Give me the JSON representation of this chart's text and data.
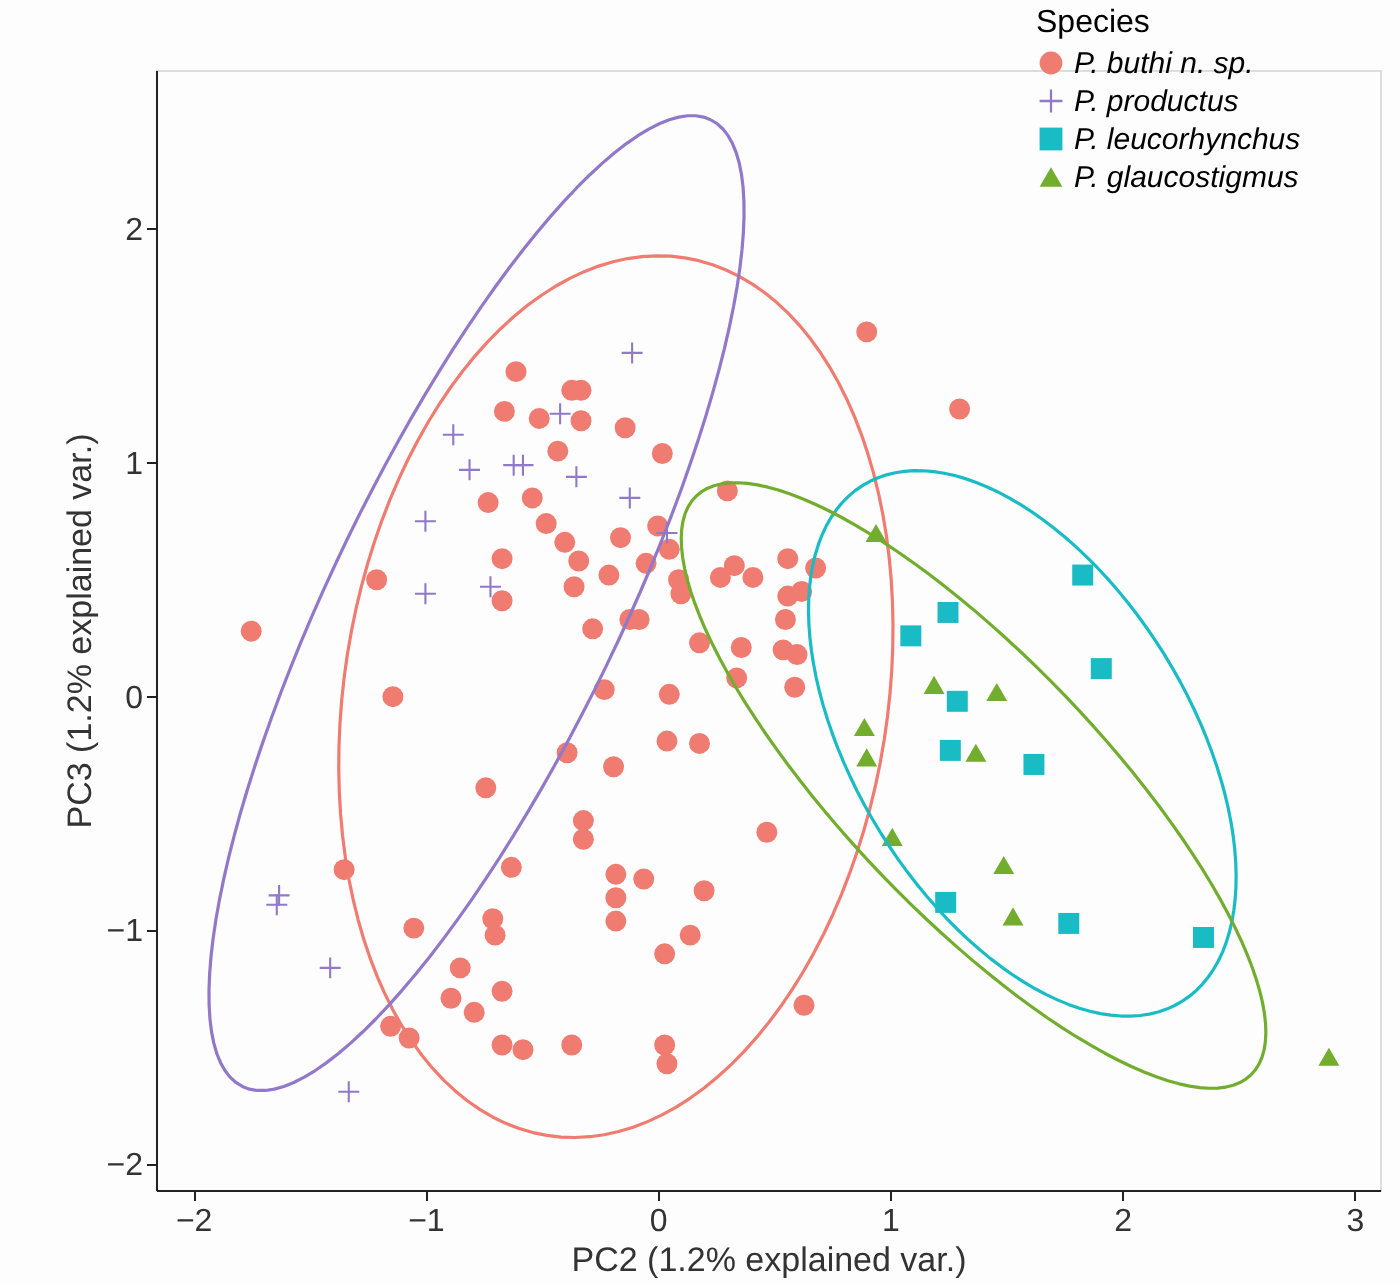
{
  "chart_data": {
    "type": "scatter",
    "xlabel": "PC2 (1.2% explained var.)",
    "ylabel": "PC3 (1.2% explained var.)",
    "legend_title": "Species",
    "legend": "top right",
    "grid": false,
    "xlim": [
      -2.16,
      3.11
    ],
    "ylim": [
      -2.11,
      2.68
    ],
    "xticks": [
      -2,
      -1,
      0,
      1,
      2,
      3
    ],
    "yticks": [
      -2,
      -1,
      0,
      1,
      2
    ],
    "series": [
      {
        "name": "P. buthi n. sp.",
        "color": "#f07b70",
        "marker": "circle",
        "x": [
          -1.75,
          -1.21,
          -1.14,
          -1.35,
          -1.05,
          -1.15,
          -1.07,
          -0.89,
          -0.85,
          -0.79,
          -0.71,
          -0.7,
          -0.67,
          -0.67,
          -0.58,
          -0.37,
          0.03,
          0.04,
          0.03,
          0.14,
          0.2,
          -0.06,
          -0.18,
          -0.18,
          -0.18,
          0.63,
          0.47,
          -0.32,
          -0.32,
          -0.63,
          -0.74,
          -0.39,
          -0.19,
          -0.23,
          0.05,
          0.04,
          0.18,
          -0.28,
          -0.12,
          -0.08,
          -0.21,
          -0.36,
          -0.67,
          -0.67,
          -0.73,
          -0.54,
          -0.48,
          -0.4,
          -0.34,
          -0.16,
          -0.05,
          0.0,
          0.05,
          0.09,
          0.1,
          0.18,
          0.3,
          0.27,
          0.33,
          0.41,
          0.36,
          0.34,
          0.56,
          0.56,
          0.62,
          0.68,
          0.55,
          0.54,
          0.6,
          0.59,
          0.9,
          1.3,
          0.02,
          -0.14,
          -0.33,
          -0.37,
          -0.33,
          -0.51,
          -0.61,
          -0.66,
          -0.43
        ],
        "values": [
          0.28,
          0.5,
          0.0,
          -0.74,
          -0.99,
          -1.41,
          -1.46,
          -1.29,
          -1.16,
          -1.35,
          -0.95,
          -1.02,
          -1.26,
          -1.49,
          -1.51,
          -1.49,
          -1.49,
          -1.57,
          -1.1,
          -1.02,
          -0.83,
          -0.78,
          -0.76,
          -0.86,
          -0.96,
          -1.32,
          -0.58,
          -0.53,
          -0.61,
          -0.73,
          -0.39,
          -0.24,
          -0.3,
          0.03,
          0.01,
          -0.19,
          -0.2,
          0.29,
          0.33,
          0.33,
          0.52,
          0.47,
          0.41,
          0.59,
          0.83,
          0.85,
          0.74,
          0.66,
          0.58,
          0.68,
          0.57,
          0.73,
          0.63,
          0.5,
          0.44,
          0.23,
          0.88,
          0.51,
          0.56,
          0.51,
          0.21,
          0.08,
          0.59,
          0.43,
          0.45,
          0.55,
          0.33,
          0.2,
          0.18,
          0.04,
          1.56,
          1.23,
          1.04,
          1.15,
          1.18,
          1.31,
          1.31,
          1.19,
          1.39,
          1.22,
          1.05
        ]
      },
      {
        "name": "P. productus",
        "color": "#9178c8",
        "marker": "cross",
        "x": [
          -0.11,
          -0.42,
          -0.88,
          -0.81,
          -0.62,
          -0.58,
          -0.35,
          -0.12,
          -1.0,
          -1.0,
          -0.72,
          0.04,
          -1.63,
          -1.64,
          -1.41,
          -1.33
        ],
        "values": [
          1.47,
          1.21,
          1.12,
          0.97,
          0.99,
          0.99,
          0.94,
          0.85,
          0.75,
          0.44,
          0.47,
          0.7,
          -0.85,
          -0.89,
          -1.16,
          -1.69
        ]
      },
      {
        "name": "P. leucorhynchus",
        "color": "#19bcc4",
        "marker": "square",
        "x": [
          1.83,
          1.25,
          1.09,
          1.91,
          1.29,
          1.26,
          1.62,
          1.24,
          1.77,
          2.35
        ],
        "values": [
          0.52,
          0.36,
          0.26,
          0.12,
          -0.02,
          -0.23,
          -0.29,
          -0.88,
          -0.97,
          -1.03
        ]
      },
      {
        "name": "P. glaucostigmus",
        "color": "#72ad2e",
        "marker": "triangle",
        "x": [
          0.94,
          1.19,
          1.46,
          0.89,
          0.9,
          1.37,
          1.01,
          1.49,
          1.53,
          2.89
        ],
        "values": [
          0.7,
          0.05,
          0.02,
          -0.13,
          -0.26,
          -0.24,
          -0.6,
          -0.72,
          -0.94,
          -1.54
        ]
      }
    ]
  }
}
